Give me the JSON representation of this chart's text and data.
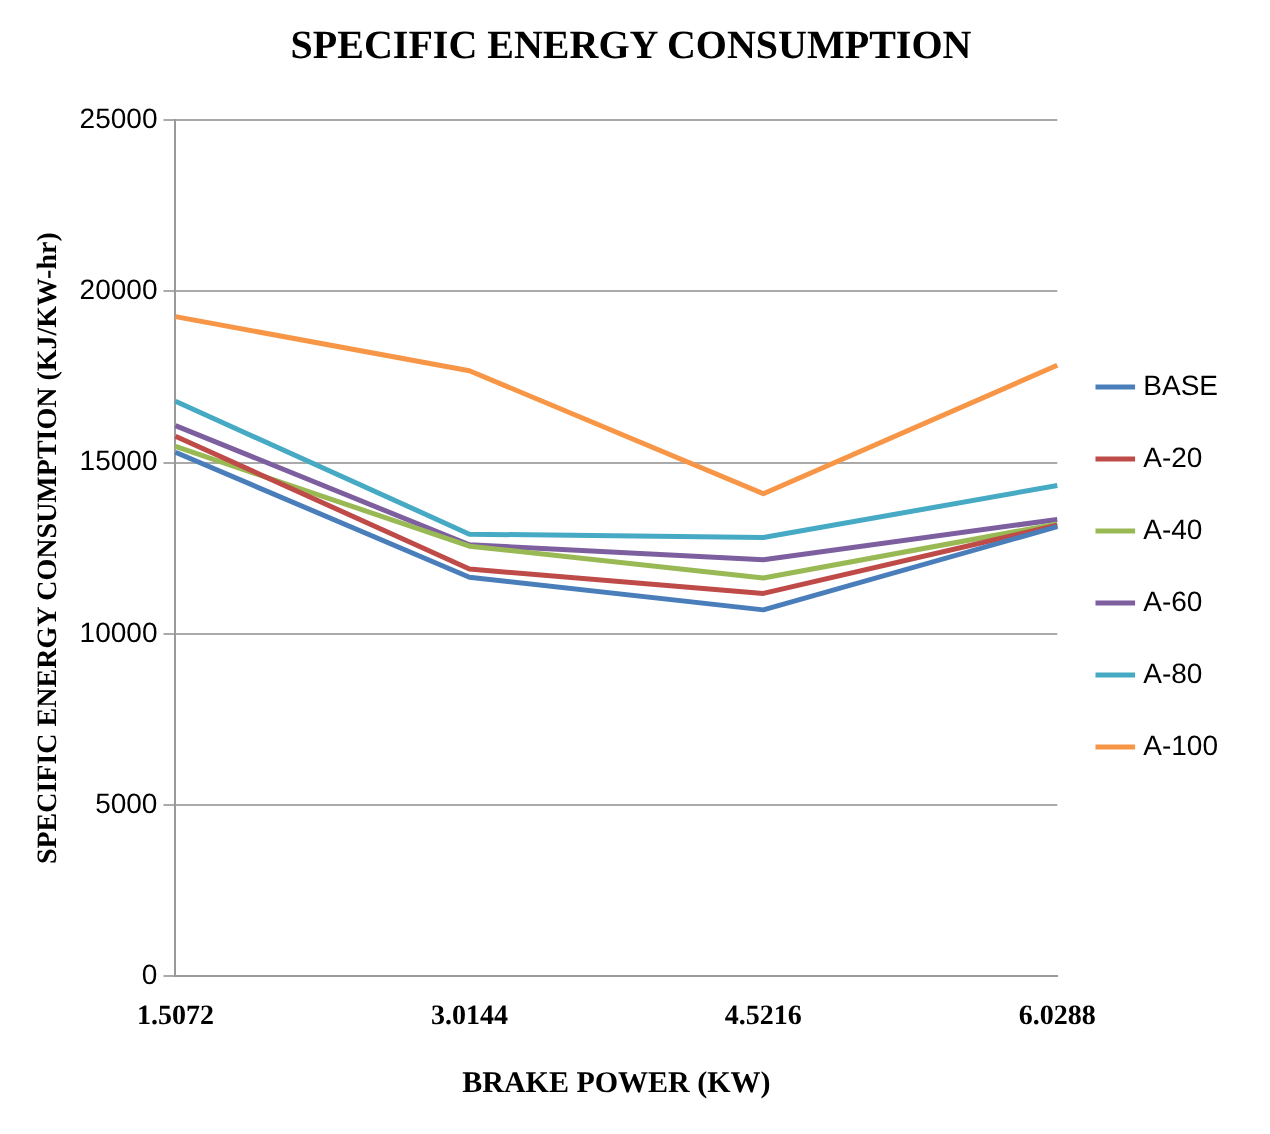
{
  "chart_data": {
    "type": "line",
    "title": "SPECIFIC ENERGY CONSUMPTION",
    "xlabel": "BRAKE POWER (KW)",
    "ylabel": "SPECIFIC ENERGY CONSUMPTION (KJ/KW-hr)",
    "categories": [
      "1.5072",
      "3.0144",
      "4.5216",
      "6.0288"
    ],
    "ylim": [
      0,
      25000
    ],
    "yticks": [
      0,
      5000,
      10000,
      15000,
      20000,
      25000
    ],
    "grid": "y",
    "legend": "right",
    "marker": "none",
    "series": [
      {
        "name": "BASE",
        "color": "#4a7ebb",
        "values": [
          15300,
          11650,
          10700,
          13130
        ]
      },
      {
        "name": "A-20",
        "color": "#be4b48",
        "values": [
          15770,
          11890,
          11180,
          13170
        ]
      },
      {
        "name": "A-40",
        "color": "#98b954",
        "values": [
          15470,
          12560,
          11630,
          13210
        ]
      },
      {
        "name": "A-60",
        "color": "#7d5fa0",
        "values": [
          16080,
          12600,
          12160,
          13340
        ]
      },
      {
        "name": "A-80",
        "color": "#46aac5",
        "values": [
          16790,
          12910,
          12810,
          14330
        ]
      },
      {
        "name": "A-100",
        "color": "#f79646",
        "values": [
          19260,
          17680,
          14090,
          17840
        ]
      }
    ]
  }
}
